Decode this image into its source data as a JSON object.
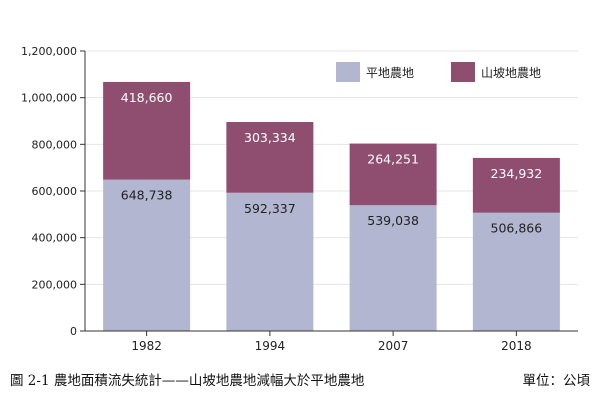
{
  "chart_data": {
    "type": "bar",
    "stacked": true,
    "categories": [
      "1982",
      "1994",
      "2007",
      "2018"
    ],
    "series": [
      {
        "name": "平地農地",
        "values": [
          648738,
          592337,
          539038,
          506866
        ],
        "color": "#b3b6d1"
      },
      {
        "name": "山坡地農地",
        "values": [
          418660,
          303334,
          264251,
          234932
        ],
        "color": "#8f4e6f"
      }
    ],
    "data_labels": [
      [
        "648,738",
        "592,337",
        "539,038",
        "506,866"
      ],
      [
        "418,660",
        "303,334",
        "264,251",
        "234,932"
      ]
    ],
    "data_label_colors": [
      "#222222",
      "#ffffff"
    ],
    "yticks": [
      "0",
      "200,000",
      "400,000",
      "600,000",
      "800,000",
      "1,000,000",
      "1,200,000"
    ],
    "ytick_values": [
      0,
      200000,
      400000,
      600000,
      800000,
      1000000,
      1200000
    ],
    "ylim": [
      0,
      1200000
    ],
    "grid": true,
    "grid_color": "#e4e4e4",
    "legend_position": "top-right"
  },
  "caption": {
    "title": "圖 2-1  農地面積流失統計——山坡地農地減幅大於平地農地",
    "unit": "單位：公頃"
  }
}
